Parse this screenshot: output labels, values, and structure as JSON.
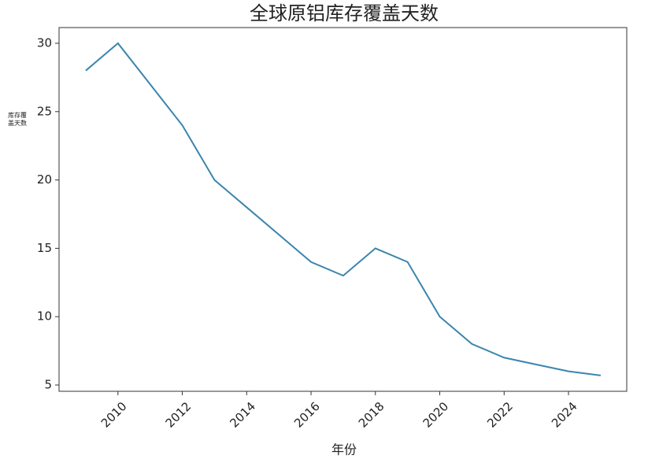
{
  "chart_data": {
    "type": "line",
    "title": "全球原铝库存覆盖天数",
    "x_label": "年份",
    "y_label": "库存覆盖天数",
    "x": [
      2009,
      2010,
      2011,
      2012,
      2013,
      2014,
      2015,
      2016,
      2017,
      2018,
      2019,
      2020,
      2021,
      2022,
      2023,
      2024,
      2025
    ],
    "series": [
      {
        "color": "#3a85ad",
        "values": [
          28,
          30,
          27,
          24,
          20,
          18,
          16,
          14,
          13,
          15,
          14,
          10,
          8,
          7,
          6.5,
          6,
          5.7
        ]
      }
    ],
    "xlim": [
      2008.17,
      2025.81
    ],
    "xticks": [
      2010,
      2012,
      2014,
      2016,
      2018,
      2020,
      2022,
      2024
    ],
    "ylim": [
      4.54,
      31.15
    ],
    "yticks": [
      5,
      10,
      15,
      20,
      25,
      30
    ]
  }
}
